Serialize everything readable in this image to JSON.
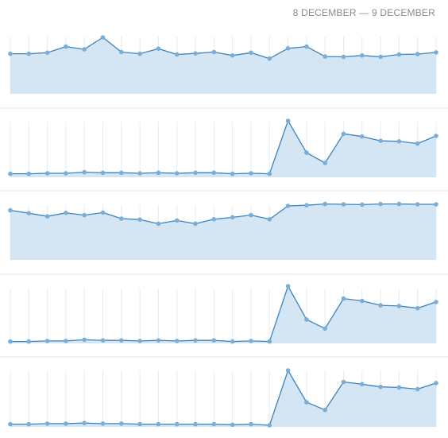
{
  "header": {
    "date_range": "8 DECEMBER — 9 DECEMBER"
  },
  "colors": {
    "line": "#3d83bd",
    "fill": "#d4e6f4",
    "point": "#79aed8",
    "grid": "#e7ecf0"
  },
  "chart_data": [
    {
      "type": "area",
      "title": "",
      "grid": true,
      "ylim": [
        0,
        100
      ],
      "values": [
        52,
        52,
        55,
        73,
        65,
        100,
        57,
        52,
        67,
        50,
        53,
        57,
        47,
        55,
        38,
        68,
        73,
        44,
        43,
        47,
        43,
        50,
        51,
        56
      ]
    },
    {
      "type": "area",
      "title": "",
      "grid": true,
      "ylim": [
        0,
        100
      ],
      "values": [
        2,
        2,
        3,
        3,
        5,
        4,
        4,
        3,
        4,
        3,
        4,
        4,
        2,
        3,
        2,
        100,
        41,
        22,
        76,
        71,
        63,
        62,
        58,
        72
      ]
    },
    {
      "type": "area",
      "title": "",
      "grid": true,
      "ylim": [
        0,
        100
      ],
      "values": [
        81,
        72,
        62,
        73,
        66,
        74,
        55,
        52,
        39,
        49,
        39,
        53,
        59,
        66,
        53,
        95,
        97,
        101,
        100,
        99,
        101,
        101,
        100,
        100
      ]
    },
    {
      "type": "area",
      "title": "",
      "grid": true,
      "ylim": [
        0,
        100
      ],
      "values": [
        2,
        2,
        3,
        3,
        5,
        4,
        4,
        3,
        4,
        3,
        4,
        4,
        2,
        3,
        2,
        100,
        41,
        25,
        78,
        74,
        66,
        65,
        61,
        72
      ]
    },
    {
      "type": "area",
      "title": "",
      "grid": true,
      "ylim": [
        0,
        100
      ],
      "values": [
        2,
        2,
        3,
        3,
        4,
        3,
        3,
        2,
        2,
        2,
        2,
        2,
        1,
        2,
        0,
        100,
        42,
        28,
        79,
        75,
        70,
        69,
        66,
        77
      ]
    }
  ]
}
